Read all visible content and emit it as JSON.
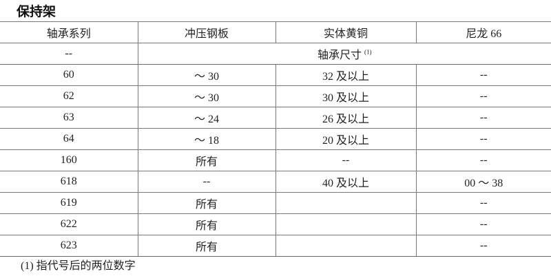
{
  "title": "保持架",
  "headers": [
    "轴承系列",
    "冲压钢板",
    "实体黄铜",
    "尼龙 66"
  ],
  "subheader": {
    "first": "--",
    "span_label": "轴承尺寸",
    "span_note": "(1)"
  },
  "rows": [
    [
      "60",
      "～ 30",
      "32 及以上",
      "--"
    ],
    [
      "62",
      "～ 30",
      "30 及以上",
      "--"
    ],
    [
      "63",
      "～ 24",
      "26 及以上",
      "--"
    ],
    [
      "64",
      "～ 18",
      "20 及以上",
      "--"
    ],
    [
      "160",
      "所有",
      "--",
      "--"
    ],
    [
      "618",
      "--",
      "40 及以上",
      "00 ～ 38"
    ],
    [
      "619",
      "所有",
      "",
      "--"
    ],
    [
      "622",
      "所有",
      "",
      "--"
    ],
    [
      "623",
      "所有",
      "",
      "--"
    ]
  ],
  "footnote": "(1) 指代号后的两位数字"
}
